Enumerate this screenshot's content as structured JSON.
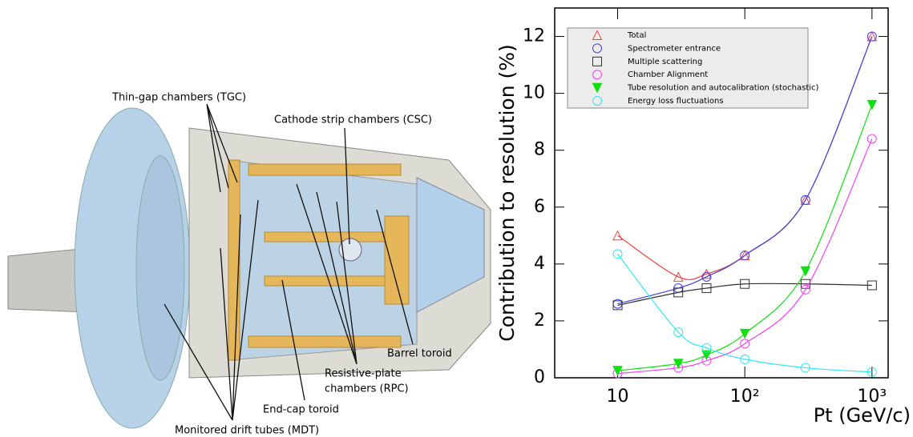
{
  "diagram": {
    "labels": [
      "Thin-gap chambers (TGC)",
      "Cathode strip chambers (CSC)",
      "Barrel toroid",
      [
        "Resistive-plate",
        "chambers (RPC)"
      ],
      "End-cap toroid",
      "Monitored drift tubes (MDT)"
    ]
  },
  "chart_data": {
    "type": "line",
    "x_label": "Pt (GeV/c)",
    "y_label": "Contribution to resolution (%)",
    "x": [
      10,
      30,
      50,
      100,
      300,
      1000
    ],
    "xlog": true,
    "xlim": [
      3.2,
      1340
    ],
    "xticks": [
      10,
      {
        "value": 100,
        "label": "10²"
      },
      {
        "value": 1000,
        "label": "10³"
      }
    ],
    "ylim": [
      0,
      13
    ],
    "yticks": [
      0,
      2,
      4,
      6,
      8,
      10,
      12
    ],
    "legend": "top-left",
    "series": [
      {
        "name": "Total",
        "color": "#f04040",
        "marker": "triangle",
        "values": [
          5.0,
          3.55,
          3.65,
          4.3,
          6.25,
          12.0
        ]
      },
      {
        "name": "Spectrometer entrance",
        "color": "#4040e0",
        "marker": "circle",
        "values": [
          2.6,
          3.15,
          3.55,
          4.3,
          6.25,
          12.0
        ]
      },
      {
        "name": "Multiple scattering",
        "color": "#303030",
        "marker": "square",
        "values": [
          2.55,
          3.0,
          3.15,
          3.3,
          3.3,
          3.25
        ]
      },
      {
        "name": "Chamber Alignment",
        "color": "#f040f0",
        "marker": "circle",
        "values": [
          0.15,
          0.35,
          0.6,
          1.2,
          3.1,
          8.4
        ]
      },
      {
        "name": "Tube resolution and autocalibration (stochastic)",
        "color": "#10e010",
        "marker": "triangle-down-filled",
        "values": [
          0.25,
          0.5,
          0.8,
          1.55,
          3.75,
          9.6
        ]
      },
      {
        "name": "Energy loss fluctuations",
        "color": "#30e8f0",
        "marker": "circle",
        "values": [
          4.35,
          1.6,
          1.05,
          0.65,
          0.35,
          0.2
        ]
      }
    ]
  }
}
